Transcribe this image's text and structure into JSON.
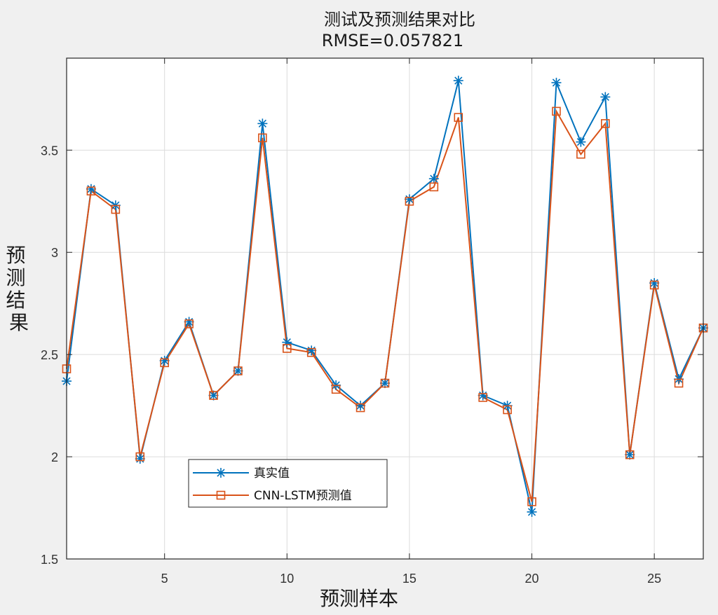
{
  "chart_data": {
    "type": "line",
    "title": "测试及预测结果对比",
    "subtitle": "RMSE=0.057821",
    "xlabel": "预测样本",
    "ylabel": "预测结果",
    "xlim": [
      1,
      27
    ],
    "ylim": [
      1.5,
      3.95
    ],
    "xticks": [
      5,
      10,
      15,
      20,
      25
    ],
    "yticks": [
      1.5,
      2,
      2.5,
      3,
      3.5
    ],
    "xtick_labels": [
      "5",
      "10",
      "15",
      "20",
      "25"
    ],
    "ytick_labels": [
      "1.5",
      "2",
      "2.5",
      "3",
      "3.5"
    ],
    "grid": true,
    "legend_position": "lower-left",
    "x": [
      1,
      2,
      3,
      4,
      5,
      6,
      7,
      8,
      9,
      10,
      11,
      12,
      13,
      14,
      15,
      16,
      17,
      18,
      19,
      20,
      21,
      22,
      23,
      24,
      25,
      26,
      27
    ],
    "series": [
      {
        "name": "真实值",
        "color": "#0072bd",
        "marker": "star",
        "values": [
          2.37,
          3.31,
          3.23,
          1.99,
          2.47,
          2.66,
          2.3,
          2.42,
          3.63,
          2.56,
          2.52,
          2.35,
          2.25,
          2.36,
          3.26,
          3.36,
          3.84,
          2.3,
          2.25,
          1.73,
          3.83,
          3.54,
          3.76,
          2.01,
          2.85,
          2.38,
          2.63
        ]
      },
      {
        "name": "CNN-LSTM预测值",
        "color": "#d95319",
        "marker": "square",
        "values": [
          2.43,
          3.3,
          3.21,
          2.0,
          2.46,
          2.65,
          2.3,
          2.42,
          3.56,
          2.53,
          2.51,
          2.33,
          2.24,
          2.36,
          3.25,
          3.32,
          3.66,
          2.29,
          2.23,
          1.78,
          3.69,
          3.48,
          3.63,
          2.01,
          2.84,
          2.36,
          2.63
        ]
      }
    ]
  }
}
